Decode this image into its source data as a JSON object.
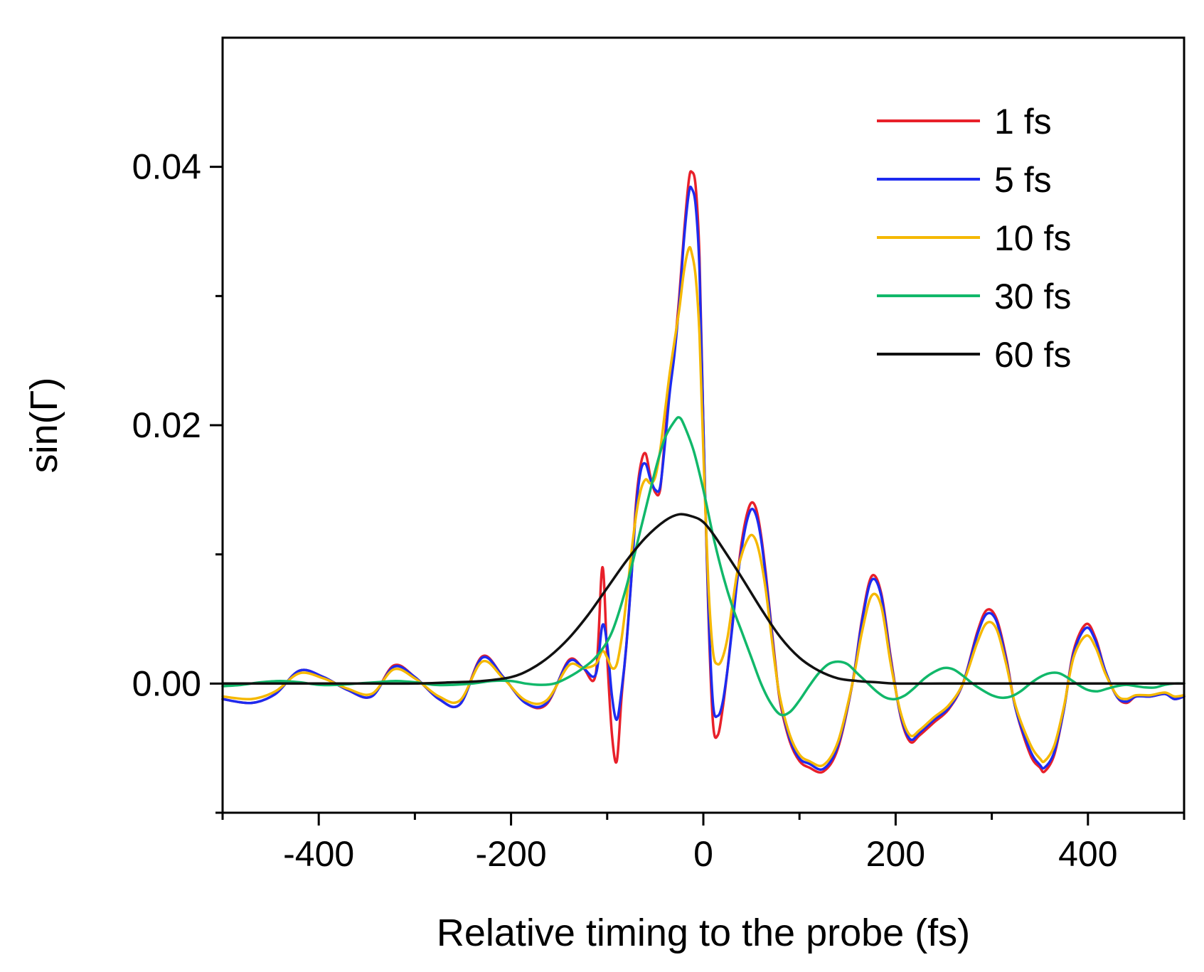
{
  "chart_data": {
    "type": "line",
    "title": "",
    "xlabel": "Relative timing to the probe (fs)",
    "ylabel": "sin(Γ)",
    "xlim": [
      -500,
      500
    ],
    "ylim": [
      -0.01,
      0.05
    ],
    "x_major_ticks": [
      -400,
      -200,
      0,
      200,
      400
    ],
    "x_tick_labels": [
      "-400",
      "-200",
      "0",
      "200",
      "400"
    ],
    "x_minor_ticks": [
      -500,
      -300,
      -100,
      100,
      300,
      500
    ],
    "y_major_ticks": [
      0.0,
      0.02,
      0.04
    ],
    "y_tick_labels": [
      "0.00",
      "0.02",
      "0.04"
    ],
    "y_minor_ticks": [
      -0.01,
      0.01,
      0.03
    ],
    "grid": false,
    "legend_position": "top-right",
    "series": [
      {
        "name": "1 fs",
        "color": "#e8202a",
        "x": [
          -500,
          -470,
          -445,
          -420,
          -395,
          -370,
          -345,
          -322,
          -300,
          -275,
          -253,
          -230,
          -208,
          -185,
          -163,
          -140,
          -125,
          -112,
          -105,
          -100,
          -95,
          -90,
          -85,
          -80,
          -75,
          -70,
          -65,
          -60,
          -55,
          -50,
          -45,
          -40,
          -35,
          -30,
          -25,
          -20,
          -15,
          -12,
          -8,
          -4,
          0,
          5,
          10,
          15,
          20,
          25,
          30,
          35,
          40,
          45,
          50,
          55,
          60,
          65,
          70,
          75,
          80,
          90,
          100,
          110,
          125,
          140,
          155,
          165,
          175,
          185,
          195,
          205,
          215,
          225,
          240,
          255,
          270,
          285,
          295,
          305,
          315,
          325,
          340,
          350,
          355,
          365,
          375,
          385,
          398,
          408,
          418,
          430,
          440,
          450,
          465,
          480,
          490,
          500
        ],
        "y": [
          -0.0012,
          -0.0015,
          -0.0008,
          0.001,
          0.0005,
          -0.0005,
          -0.001,
          0.0014,
          0.0005,
          -0.0012,
          -0.0016,
          0.0021,
          0.0005,
          -0.0015,
          -0.0016,
          0.0018,
          0.0012,
          0.0007,
          0.009,
          0.002,
          -0.004,
          -0.006,
          -0.001,
          0.003,
          0.008,
          0.014,
          0.017,
          0.0178,
          0.016,
          0.0148,
          0.015,
          0.019,
          0.023,
          0.026,
          0.03,
          0.035,
          0.039,
          0.0396,
          0.0385,
          0.033,
          0.02,
          0.006,
          -0.003,
          -0.004,
          -0.002,
          0.001,
          0.0045,
          0.008,
          0.011,
          0.013,
          0.014,
          0.0135,
          0.0115,
          0.0085,
          0.005,
          0.0015,
          -0.0015,
          -0.0045,
          -0.006,
          -0.0065,
          -0.0068,
          -0.005,
          0.0,
          0.005,
          0.0083,
          0.007,
          0.002,
          -0.0025,
          -0.0045,
          -0.004,
          -0.003,
          -0.002,
          0.0,
          0.004,
          0.0057,
          0.005,
          0.002,
          -0.002,
          -0.0055,
          -0.0065,
          -0.0068,
          -0.0055,
          -0.002,
          0.0025,
          0.0046,
          0.0035,
          0.001,
          -0.001,
          -0.0015,
          -0.001,
          -0.001,
          -0.0008,
          -0.0012,
          -0.001
        ]
      },
      {
        "name": "5 fs",
        "color": "#1d2bf0",
        "x": [
          -500,
          -470,
          -445,
          -420,
          -395,
          -370,
          -345,
          -322,
          -300,
          -275,
          -253,
          -230,
          -208,
          -185,
          -163,
          -140,
          -125,
          -112,
          -105,
          -100,
          -95,
          -90,
          -85,
          -80,
          -75,
          -70,
          -65,
          -60,
          -55,
          -50,
          -45,
          -40,
          -35,
          -30,
          -25,
          -20,
          -15,
          -12,
          -8,
          -4,
          0,
          5,
          10,
          15,
          20,
          25,
          30,
          35,
          40,
          45,
          50,
          55,
          60,
          65,
          70,
          75,
          80,
          90,
          100,
          110,
          125,
          140,
          155,
          165,
          175,
          185,
          195,
          205,
          215,
          225,
          240,
          255,
          270,
          285,
          295,
          305,
          315,
          325,
          340,
          350,
          355,
          365,
          375,
          385,
          398,
          408,
          418,
          430,
          440,
          450,
          465,
          480,
          490,
          500
        ],
        "y": [
          -0.0012,
          -0.0015,
          -0.0008,
          0.001,
          0.0005,
          -0.0005,
          -0.001,
          0.0013,
          0.0005,
          -0.0012,
          -0.0016,
          0.002,
          0.0005,
          -0.0015,
          -0.0015,
          0.0017,
          0.0012,
          0.0007,
          0.0045,
          0.003,
          -0.001,
          -0.0028,
          -0.0005,
          0.003,
          0.008,
          0.0135,
          0.0165,
          0.017,
          0.0158,
          0.015,
          0.0152,
          0.0185,
          0.0225,
          0.0255,
          0.0295,
          0.0345,
          0.038,
          0.0383,
          0.037,
          0.032,
          0.02,
          0.0065,
          -0.0015,
          -0.0025,
          -0.0015,
          0.001,
          0.0043,
          0.0078,
          0.0105,
          0.0125,
          0.0135,
          0.013,
          0.0112,
          0.0082,
          0.0048,
          0.0013,
          -0.0013,
          -0.0043,
          -0.0058,
          -0.0062,
          -0.0066,
          -0.0048,
          0.0,
          0.0048,
          0.008,
          0.0068,
          0.0018,
          -0.0024,
          -0.0043,
          -0.0038,
          -0.0028,
          -0.0019,
          0.0,
          0.0038,
          0.0054,
          0.0048,
          0.0018,
          -0.002,
          -0.0052,
          -0.0063,
          -0.0065,
          -0.0053,
          -0.002,
          0.0023,
          0.0043,
          0.0033,
          0.001,
          -0.001,
          -0.0014,
          -0.001,
          -0.001,
          -0.0008,
          -0.0012,
          -0.001
        ]
      },
      {
        "name": "10 fs",
        "color": "#f5b800",
        "x": [
          -500,
          -470,
          -445,
          -420,
          -395,
          -370,
          -345,
          -322,
          -300,
          -275,
          -253,
          -230,
          -208,
          -185,
          -163,
          -140,
          -125,
          -112,
          -105,
          -100,
          -95,
          -90,
          -85,
          -80,
          -75,
          -70,
          -65,
          -60,
          -55,
          -50,
          -45,
          -40,
          -35,
          -30,
          -25,
          -20,
          -15,
          -12,
          -8,
          -4,
          0,
          5,
          10,
          15,
          20,
          25,
          30,
          35,
          40,
          45,
          50,
          55,
          60,
          65,
          70,
          75,
          80,
          90,
          100,
          110,
          125,
          140,
          155,
          165,
          175,
          185,
          195,
          205,
          215,
          225,
          240,
          255,
          270,
          285,
          295,
          305,
          315,
          325,
          340,
          350,
          355,
          365,
          375,
          385,
          398,
          408,
          418,
          430,
          440,
          450,
          465,
          480,
          490,
          500
        ],
        "y": [
          -0.001,
          -0.0012,
          -0.0006,
          0.0008,
          0.0004,
          -0.0004,
          -0.0008,
          0.0011,
          0.0004,
          -0.001,
          -0.0013,
          0.0017,
          0.0004,
          -0.0013,
          -0.0013,
          0.0014,
          0.0012,
          0.0015,
          0.0025,
          0.002,
          0.0012,
          0.0015,
          0.0035,
          0.0065,
          0.01,
          0.013,
          0.015,
          0.0158,
          0.0155,
          0.016,
          0.018,
          0.021,
          0.024,
          0.0265,
          0.029,
          0.032,
          0.0337,
          0.0333,
          0.0315,
          0.027,
          0.018,
          0.008,
          0.0025,
          0.0015,
          0.002,
          0.0035,
          0.006,
          0.0085,
          0.01,
          0.011,
          0.0115,
          0.011,
          0.0095,
          0.0072,
          0.0042,
          0.0012,
          -0.0012,
          -0.004,
          -0.0055,
          -0.006,
          -0.0063,
          -0.0045,
          0.0,
          0.004,
          0.0068,
          0.006,
          0.0015,
          -0.0022,
          -0.004,
          -0.0036,
          -0.0026,
          -0.0017,
          0.0,
          0.0032,
          0.0047,
          0.0042,
          0.0015,
          -0.0018,
          -0.0047,
          -0.0058,
          -0.006,
          -0.0048,
          -0.0018,
          0.002,
          0.0037,
          0.0028,
          0.0008,
          -0.0009,
          -0.0012,
          -0.0009,
          -0.0009,
          -0.0007,
          -0.001,
          -0.0009
        ]
      },
      {
        "name": "30 fs",
        "color": "#11b86a",
        "x": [
          -500,
          -480,
          -460,
          -440,
          -420,
          -400,
          -380,
          -360,
          -340,
          -320,
          -300,
          -280,
          -260,
          -240,
          -220,
          -200,
          -185,
          -170,
          -155,
          -140,
          -125,
          -110,
          -95,
          -80,
          -65,
          -50,
          -40,
          -30,
          -25,
          -20,
          -10,
          0,
          10,
          20,
          30,
          40,
          50,
          60,
          70,
          80,
          90,
          100,
          110,
          120,
          130,
          140,
          150,
          160,
          170,
          180,
          190,
          200,
          210,
          220,
          230,
          240,
          250,
          260,
          270,
          280,
          290,
          300,
          310,
          320,
          330,
          340,
          350,
          360,
          370,
          380,
          390,
          400,
          410,
          420,
          430,
          440,
          450,
          460,
          470,
          480,
          490,
          500
        ],
        "y": [
          -0.0002,
          -0.0001,
          0.0001,
          0.0002,
          0.0001,
          -0.0001,
          -0.0001,
          0.0,
          0.0001,
          0.0002,
          0.0001,
          -0.0001,
          -0.0001,
          0.0,
          0.0002,
          0.0002,
          0.0,
          -0.0001,
          0.0,
          0.0005,
          0.0012,
          0.0022,
          0.004,
          0.0075,
          0.012,
          0.0165,
          0.019,
          0.0203,
          0.0206,
          0.02,
          0.018,
          0.015,
          0.0115,
          0.0085,
          0.006,
          0.004,
          0.002,
          0.0,
          -0.0015,
          -0.0024,
          -0.0022,
          -0.0013,
          -0.0002,
          0.0008,
          0.0015,
          0.0017,
          0.0015,
          0.0008,
          0.0001,
          -0.0006,
          -0.0011,
          -0.0012,
          -0.0009,
          -0.0003,
          0.0004,
          0.0009,
          0.0012,
          0.0011,
          0.0006,
          0.0,
          -0.0005,
          -0.0009,
          -0.0011,
          -0.001,
          -0.0006,
          0.0,
          0.0005,
          0.0008,
          0.0008,
          0.0004,
          -0.0001,
          -0.0005,
          -0.0006,
          -0.0004,
          -0.0002,
          -0.0001,
          -0.0002,
          -0.0003,
          -0.0003,
          -0.0001,
          0.0,
          0.0
        ]
      },
      {
        "name": "60 fs",
        "color": "#111111",
        "x": [
          -500,
          -450,
          -400,
          -350,
          -300,
          -260,
          -230,
          -200,
          -180,
          -160,
          -140,
          -120,
          -100,
          -80,
          -60,
          -40,
          -25,
          -10,
          0,
          10,
          20,
          40,
          60,
          80,
          100,
          120,
          140,
          160,
          180,
          200,
          250,
          300,
          350,
          400,
          450,
          500
        ],
        "y": [
          0.0,
          0.0,
          0.0,
          0.0,
          0.0,
          0.0001,
          0.0002,
          0.0005,
          0.0011,
          0.0021,
          0.0035,
          0.0053,
          0.0074,
          0.0095,
          0.0113,
          0.0126,
          0.0131,
          0.0129,
          0.0125,
          0.0116,
          0.0105,
          0.0082,
          0.0058,
          0.0036,
          0.002,
          0.001,
          0.0004,
          0.0002,
          0.0001,
          0.0,
          0.0,
          0.0,
          0.0,
          0.0,
          0.0,
          0.0
        ]
      }
    ]
  }
}
